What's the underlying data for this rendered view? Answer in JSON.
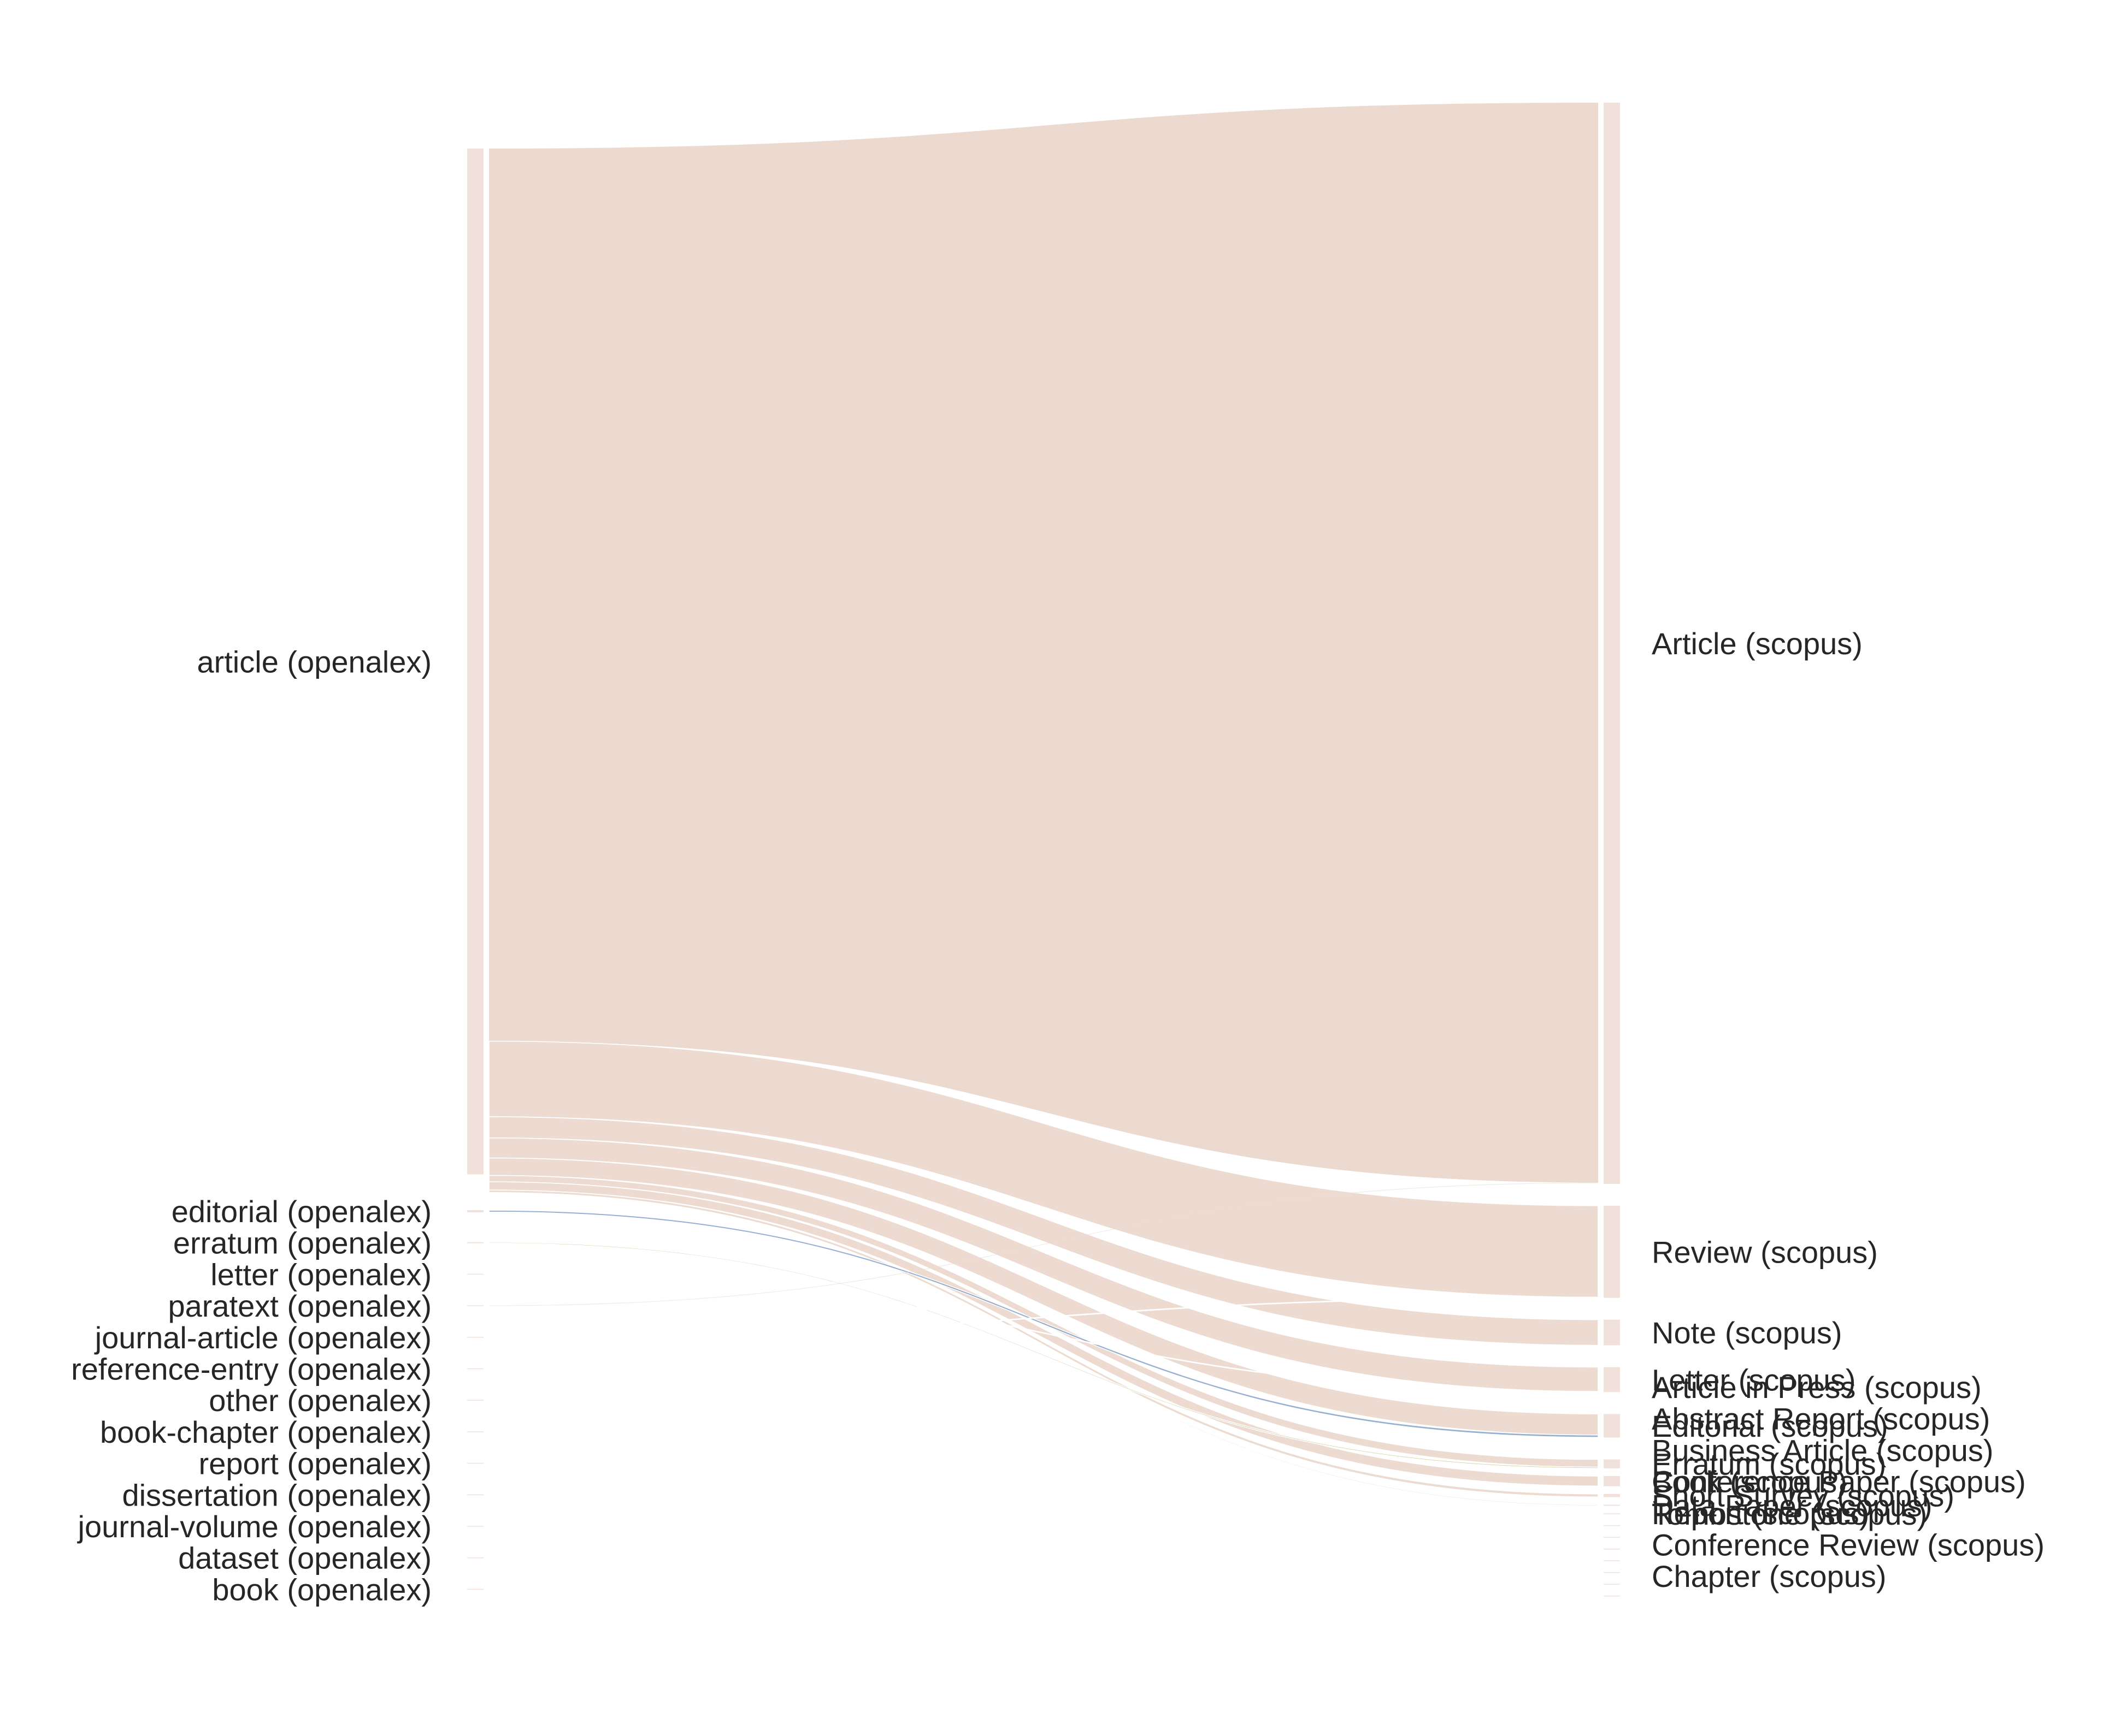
{
  "chart_data": {
    "type": "sankey",
    "title": "",
    "colors": {
      "flow_article": "#ecd9cf",
      "node_bar": "#f0e2da",
      "flow_editorial": "#7a9cc6",
      "flow_erratum": "#c9c489",
      "flow_minor": "#e8ddd5",
      "label": "#262626"
    },
    "source_nodes": [
      {
        "id": "article",
        "label": "article (openalex)",
        "value": 9700
      },
      {
        "id": "editorial",
        "label": "editorial (openalex)",
        "value": 20
      },
      {
        "id": "erratum",
        "label": "erratum (openalex)",
        "value": 10
      },
      {
        "id": "letter",
        "label": "letter (openalex)",
        "value": 8
      },
      {
        "id": "paratext",
        "label": "paratext (openalex)",
        "value": 6
      },
      {
        "id": "journal-article",
        "label": "journal-article (openalex)",
        "value": 5
      },
      {
        "id": "reference-entry",
        "label": "reference-entry (openalex)",
        "value": 2
      },
      {
        "id": "other",
        "label": "other (openalex)",
        "value": 2
      },
      {
        "id": "book-chapter",
        "label": "book-chapter (openalex)",
        "value": 1
      },
      {
        "id": "report",
        "label": "report (openalex)",
        "value": 1
      },
      {
        "id": "dissertation",
        "label": "dissertation (openalex)",
        "value": 1
      },
      {
        "id": "journal-volume",
        "label": "journal-volume (openalex)",
        "value": 1
      },
      {
        "id": "dataset",
        "label": "dataset (openalex)",
        "value": 1
      },
      {
        "id": "book",
        "label": "book (openalex)",
        "value": 1
      }
    ],
    "target_nodes": [
      {
        "id": "Article",
        "label": "Article (scopus)",
        "value": 8450
      },
      {
        "id": "Review",
        "label": "Review (scopus)",
        "value": 720
      },
      {
        "id": "Note",
        "label": "Note (scopus)",
        "value": 200
      },
      {
        "id": "Letter",
        "label": "Letter (scopus)",
        "value": 195
      },
      {
        "id": "Editorial",
        "label": "Editorial (scopus)",
        "value": 185
      },
      {
        "id": "Erratum",
        "label": "Erratum (scopus)",
        "value": 70
      },
      {
        "id": "ConferencePaper",
        "label": "Conference Paper (scopus)",
        "value": 80
      },
      {
        "id": "ShortSurvey",
        "label": "Short Survey (scopus)",
        "value": 25
      },
      {
        "id": "DataPaper",
        "label": "Data Paper (scopus)",
        "value": 8
      },
      {
        "id": "Tombstone",
        "label": "Tombstone (scopus)",
        "value": 4
      },
      {
        "id": "ArticleInPress",
        "label": "Article in Press (scopus)",
        "value": 1
      },
      {
        "id": "AbstractReport",
        "label": "Abstract Report (scopus)",
        "value": 1
      },
      {
        "id": "BusinessArticle",
        "label": "Business Article (scopus)",
        "value": 1
      },
      {
        "id": "Book",
        "label": "Book (scopus)",
        "value": 1
      },
      {
        "id": "Report",
        "label": "Report (scopus)",
        "value": 1
      },
      {
        "id": "ConferenceReview",
        "label": "Conference Review (scopus)",
        "value": 1
      },
      {
        "id": "Chapter",
        "label": "Chapter (scopus)",
        "value": 1
      }
    ],
    "flows": [
      {
        "source": "article",
        "target": "Article",
        "value": 8440
      },
      {
        "source": "article",
        "target": "Review",
        "value": 715
      },
      {
        "source": "article",
        "target": "Note",
        "value": 200
      },
      {
        "source": "article",
        "target": "Letter",
        "value": 190
      },
      {
        "source": "article",
        "target": "Editorial",
        "value": 165
      },
      {
        "source": "article",
        "target": "Erratum",
        "value": 60
      },
      {
        "source": "article",
        "target": "ConferencePaper",
        "value": 78
      },
      {
        "source": "article",
        "target": "ShortSurvey",
        "value": 24
      },
      {
        "source": "article",
        "target": "DataPaper",
        "value": 8
      },
      {
        "source": "article",
        "target": "Tombstone",
        "value": 4
      },
      {
        "source": "editorial",
        "target": "Editorial",
        "value": 18
      },
      {
        "source": "erratum",
        "target": "Erratum",
        "value": 10
      },
      {
        "source": "letter",
        "target": "Letter",
        "value": 5
      },
      {
        "source": "paratext",
        "target": "Article",
        "value": 5
      },
      {
        "source": "journal-article",
        "target": "Review",
        "value": 3
      }
    ]
  }
}
